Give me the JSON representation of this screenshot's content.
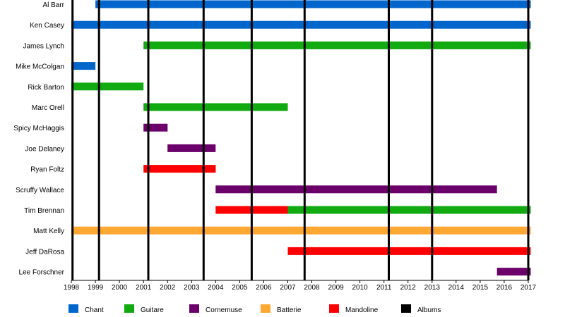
{
  "chart_data": {
    "type": "timeline",
    "x_range": [
      1998,
      2017
    ],
    "x_ticks": [
      "1998",
      "1999",
      "2000",
      "2001",
      "2002",
      "2003",
      "2004",
      "2005",
      "2006",
      "2007",
      "2008",
      "2009",
      "2010",
      "2011",
      "2012",
      "2013",
      "2014",
      "2015",
      "2016",
      "2017"
    ],
    "members": [
      "Al Barr",
      "Ken Casey",
      "James Lynch",
      "Mike McColgan",
      "Rick Barton",
      "Marc Orell",
      "Spicy McHaggis",
      "Joe Delaney",
      "Ryan Foltz",
      "Scruffy Wallace",
      "Tim Brennan",
      "Matt Kelly",
      "Jeff DaRosa",
      "Lee Forschner"
    ],
    "roles": [
      {
        "key": "chant",
        "name": "Chant",
        "color": "#0066cc"
      },
      {
        "key": "guitare",
        "name": "Guitare",
        "color": "#11aa11"
      },
      {
        "key": "cornemuse",
        "name": "Cornemuse",
        "color": "#6b006b"
      },
      {
        "key": "batterie",
        "name": "Batterie",
        "color": "#ffa733"
      },
      {
        "key": "mandoline",
        "name": "Mandoline",
        "color": "#ff0000"
      },
      {
        "key": "albums",
        "name": "Albums",
        "color": "#000000"
      }
    ],
    "bars": [
      {
        "member": "Al Barr",
        "role": "chant",
        "start": 1999.0,
        "end": 2017.1
      },
      {
        "member": "Ken Casey",
        "role": "chant",
        "start": 1998.0,
        "end": 2017.1
      },
      {
        "member": "James Lynch",
        "role": "guitare",
        "start": 2001.0,
        "end": 2017.1
      },
      {
        "member": "Mike McColgan",
        "role": "chant",
        "start": 1998.0,
        "end": 1999.0
      },
      {
        "member": "Rick Barton",
        "role": "guitare",
        "start": 1998.0,
        "end": 2001.0
      },
      {
        "member": "Marc Orell",
        "role": "guitare",
        "start": 2001.0,
        "end": 2007.0
      },
      {
        "member": "Spicy McHaggis",
        "role": "cornemuse",
        "start": 2001.0,
        "end": 2002.0
      },
      {
        "member": "Joe Delaney",
        "role": "cornemuse",
        "start": 2002.0,
        "end": 2004.0
      },
      {
        "member": "Ryan Foltz",
        "role": "mandoline",
        "start": 2001.0,
        "end": 2004.0
      },
      {
        "member": "Scruffy Wallace",
        "role": "cornemuse",
        "start": 2004.0,
        "end": 2015.7
      },
      {
        "member": "Tim Brennan",
        "role": "mandoline",
        "start": 2004.0,
        "end": 2007.0
      },
      {
        "member": "Tim Brennan",
        "role": "guitare",
        "start": 2007.0,
        "end": 2017.1
      },
      {
        "member": "Matt Kelly",
        "role": "batterie",
        "start": 1998.0,
        "end": 2017.1
      },
      {
        "member": "Jeff DaRosa",
        "role": "mandoline",
        "start": 2007.0,
        "end": 2017.1
      },
      {
        "member": "Lee Forschner",
        "role": "cornemuse",
        "start": 2015.7,
        "end": 2017.1
      }
    ],
    "album_lines": [
      1998.05,
      1999.15,
      2001.2,
      2003.5,
      2005.5,
      2007.7,
      2011.2,
      2013.0,
      2017.0
    ],
    "grid": false,
    "legend_position": "bottom"
  }
}
